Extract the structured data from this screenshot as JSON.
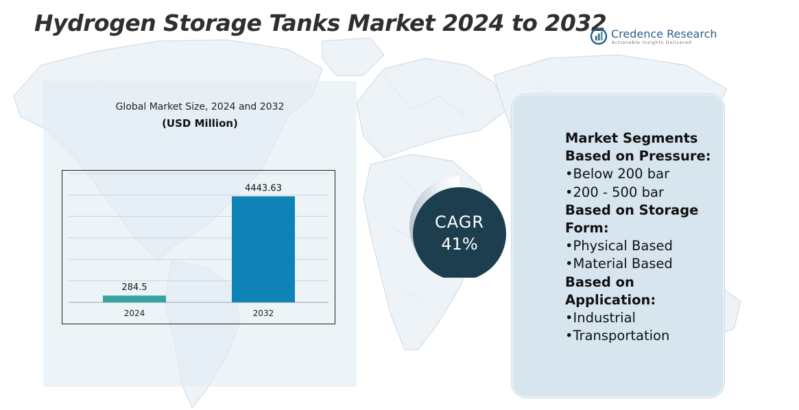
{
  "title": "Hydrogen Storage Tanks Market 2024 to 2032",
  "logo": {
    "name": "Credence Research",
    "tagline": "Actionable Insights Delivered",
    "icon": "bar-chart-circle-icon",
    "color": "#2c5f8a"
  },
  "chart_caption": "Global Market Size, 2024 and 2032",
  "chart_units": "(USD Million)",
  "chart_data": {
    "type": "bar",
    "categories": [
      "2024",
      "2032"
    ],
    "values": [
      284.5,
      4443.63
    ],
    "value_labels": [
      "284.5",
      "4443.63"
    ],
    "colors": [
      "#35a3a3",
      "#0f83b6"
    ],
    "xlabel": "",
    "ylabel": "",
    "ylim": [
      0,
      5400
    ],
    "grid": true,
    "legend": "none"
  },
  "cagr": {
    "label": "CAGR",
    "value": "41%",
    "color": "#1d3e4f"
  },
  "segments": [
    {
      "kind": "heading",
      "text": "Market Segments"
    },
    {
      "kind": "heading",
      "text": "Based on Pressure:"
    },
    {
      "kind": "item",
      "text": "•Below 200 bar"
    },
    {
      "kind": "item",
      "text": "•200 - 500 bar"
    },
    {
      "kind": "heading",
      "text": "Based on Storage"
    },
    {
      "kind": "heading",
      "text": "Form:"
    },
    {
      "kind": "item",
      "text": "•Physical Based"
    },
    {
      "kind": "item",
      "text": "•Material Based"
    },
    {
      "kind": "heading",
      "text": "Based on"
    },
    {
      "kind": "heading",
      "text": "Application:"
    },
    {
      "kind": "item",
      "text": "•Industrial"
    },
    {
      "kind": "item",
      "text": "•Transportation"
    }
  ]
}
